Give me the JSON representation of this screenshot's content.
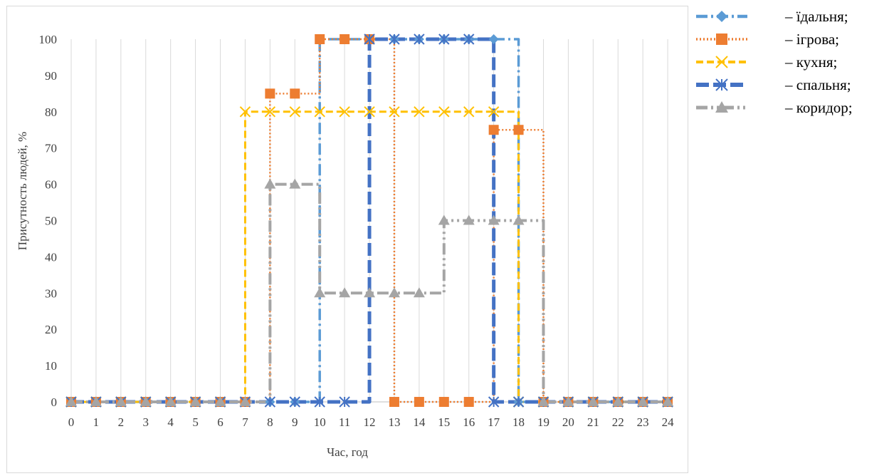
{
  "chart_data": {
    "type": "line",
    "title": "",
    "xlabel": "Час, год",
    "ylabel": "Присутность людей, %",
    "x": [
      0,
      1,
      2,
      3,
      4,
      5,
      6,
      7,
      8,
      9,
      10,
      11,
      12,
      13,
      14,
      15,
      16,
      17,
      18,
      19,
      20,
      21,
      22,
      23,
      24
    ],
    "x_ticks": [
      "0",
      "1",
      "2",
      "3",
      "4",
      "5",
      "6",
      "7",
      "8",
      "9",
      "10",
      "11",
      "12",
      "13",
      "14",
      "15",
      "16",
      "17",
      "18",
      "19",
      "20",
      "21",
      "22",
      "23",
      "24"
    ],
    "ylim": [
      0,
      100
    ],
    "y_ticks": [
      "0",
      "10",
      "20",
      "30",
      "40",
      "50",
      "60",
      "70",
      "80",
      "90",
      "100"
    ],
    "grid": "vertical",
    "legend_position": "right",
    "step": true,
    "series": [
      {
        "name": "– їдальня;",
        "color": "#5b9bd5",
        "marker": "diamond",
        "style": "long-dash-dot",
        "values": [
          0,
          0,
          0,
          0,
          0,
          0,
          0,
          0,
          0,
          0,
          100,
          100,
          100,
          100,
          100,
          100,
          100,
          100,
          0,
          0,
          0,
          0,
          0,
          0,
          0
        ]
      },
      {
        "name": "– ігрова;",
        "color": "#ed7d31",
        "marker": "square",
        "style": "dotted",
        "values": [
          0,
          0,
          0,
          0,
          0,
          0,
          0,
          0,
          85,
          85,
          100,
          100,
          100,
          0,
          0,
          0,
          0,
          75,
          75,
          0,
          0,
          0,
          0,
          0,
          0
        ]
      },
      {
        "name": "– кухня;",
        "color": "#ffc000",
        "marker": "x",
        "style": "dashed",
        "values": [
          0,
          0,
          0,
          0,
          0,
          0,
          0,
          80,
          80,
          80,
          80,
          80,
          80,
          80,
          80,
          80,
          80,
          80,
          0,
          0,
          0,
          0,
          0,
          0,
          0
        ]
      },
      {
        "name": "– спальня;",
        "color": "#4472c4",
        "marker": "asterisk",
        "style": "long-dash",
        "values": [
          0,
          0,
          0,
          0,
          0,
          0,
          0,
          0,
          0,
          0,
          0,
          0,
          100,
          100,
          100,
          100,
          100,
          0,
          0,
          0,
          0,
          0,
          0,
          0,
          0
        ]
      },
      {
        "name": "– коридор;",
        "color": "#a5a5a5",
        "marker": "triangle",
        "style": "long-dash-dot-dot",
        "values": [
          0,
          0,
          0,
          0,
          0,
          0,
          0,
          0,
          60,
          60,
          30,
          30,
          30,
          30,
          30,
          50,
          50,
          50,
          50,
          0,
          0,
          0,
          0,
          0,
          0
        ]
      }
    ]
  }
}
